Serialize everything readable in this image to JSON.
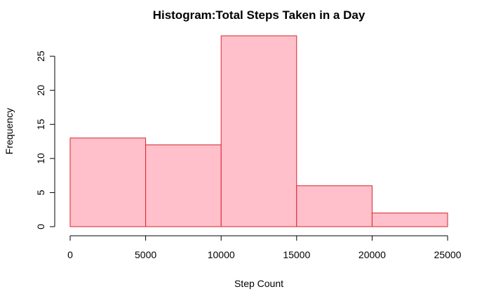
{
  "chart_data": {
    "type": "bar",
    "title": "Histogram:Total Steps Taken in a Day",
    "xlabel": "Step Count",
    "ylabel": "Frequency",
    "bins": [
      {
        "start": 0,
        "end": 5000,
        "count": 13
      },
      {
        "start": 5000,
        "end": 10000,
        "count": 12
      },
      {
        "start": 10000,
        "end": 15000,
        "count": 28
      },
      {
        "start": 15000,
        "end": 20000,
        "count": 6
      },
      {
        "start": 20000,
        "end": 25000,
        "count": 2
      }
    ],
    "xticks": [
      0,
      5000,
      10000,
      15000,
      20000,
      25000
    ],
    "yticks": [
      0,
      5,
      10,
      15,
      20,
      25
    ],
    "xlim": [
      0,
      25000
    ],
    "ylim": [
      0,
      28
    ],
    "grid": false,
    "colors": {
      "fill": "#FFC0CB",
      "stroke": "#D62728"
    }
  }
}
